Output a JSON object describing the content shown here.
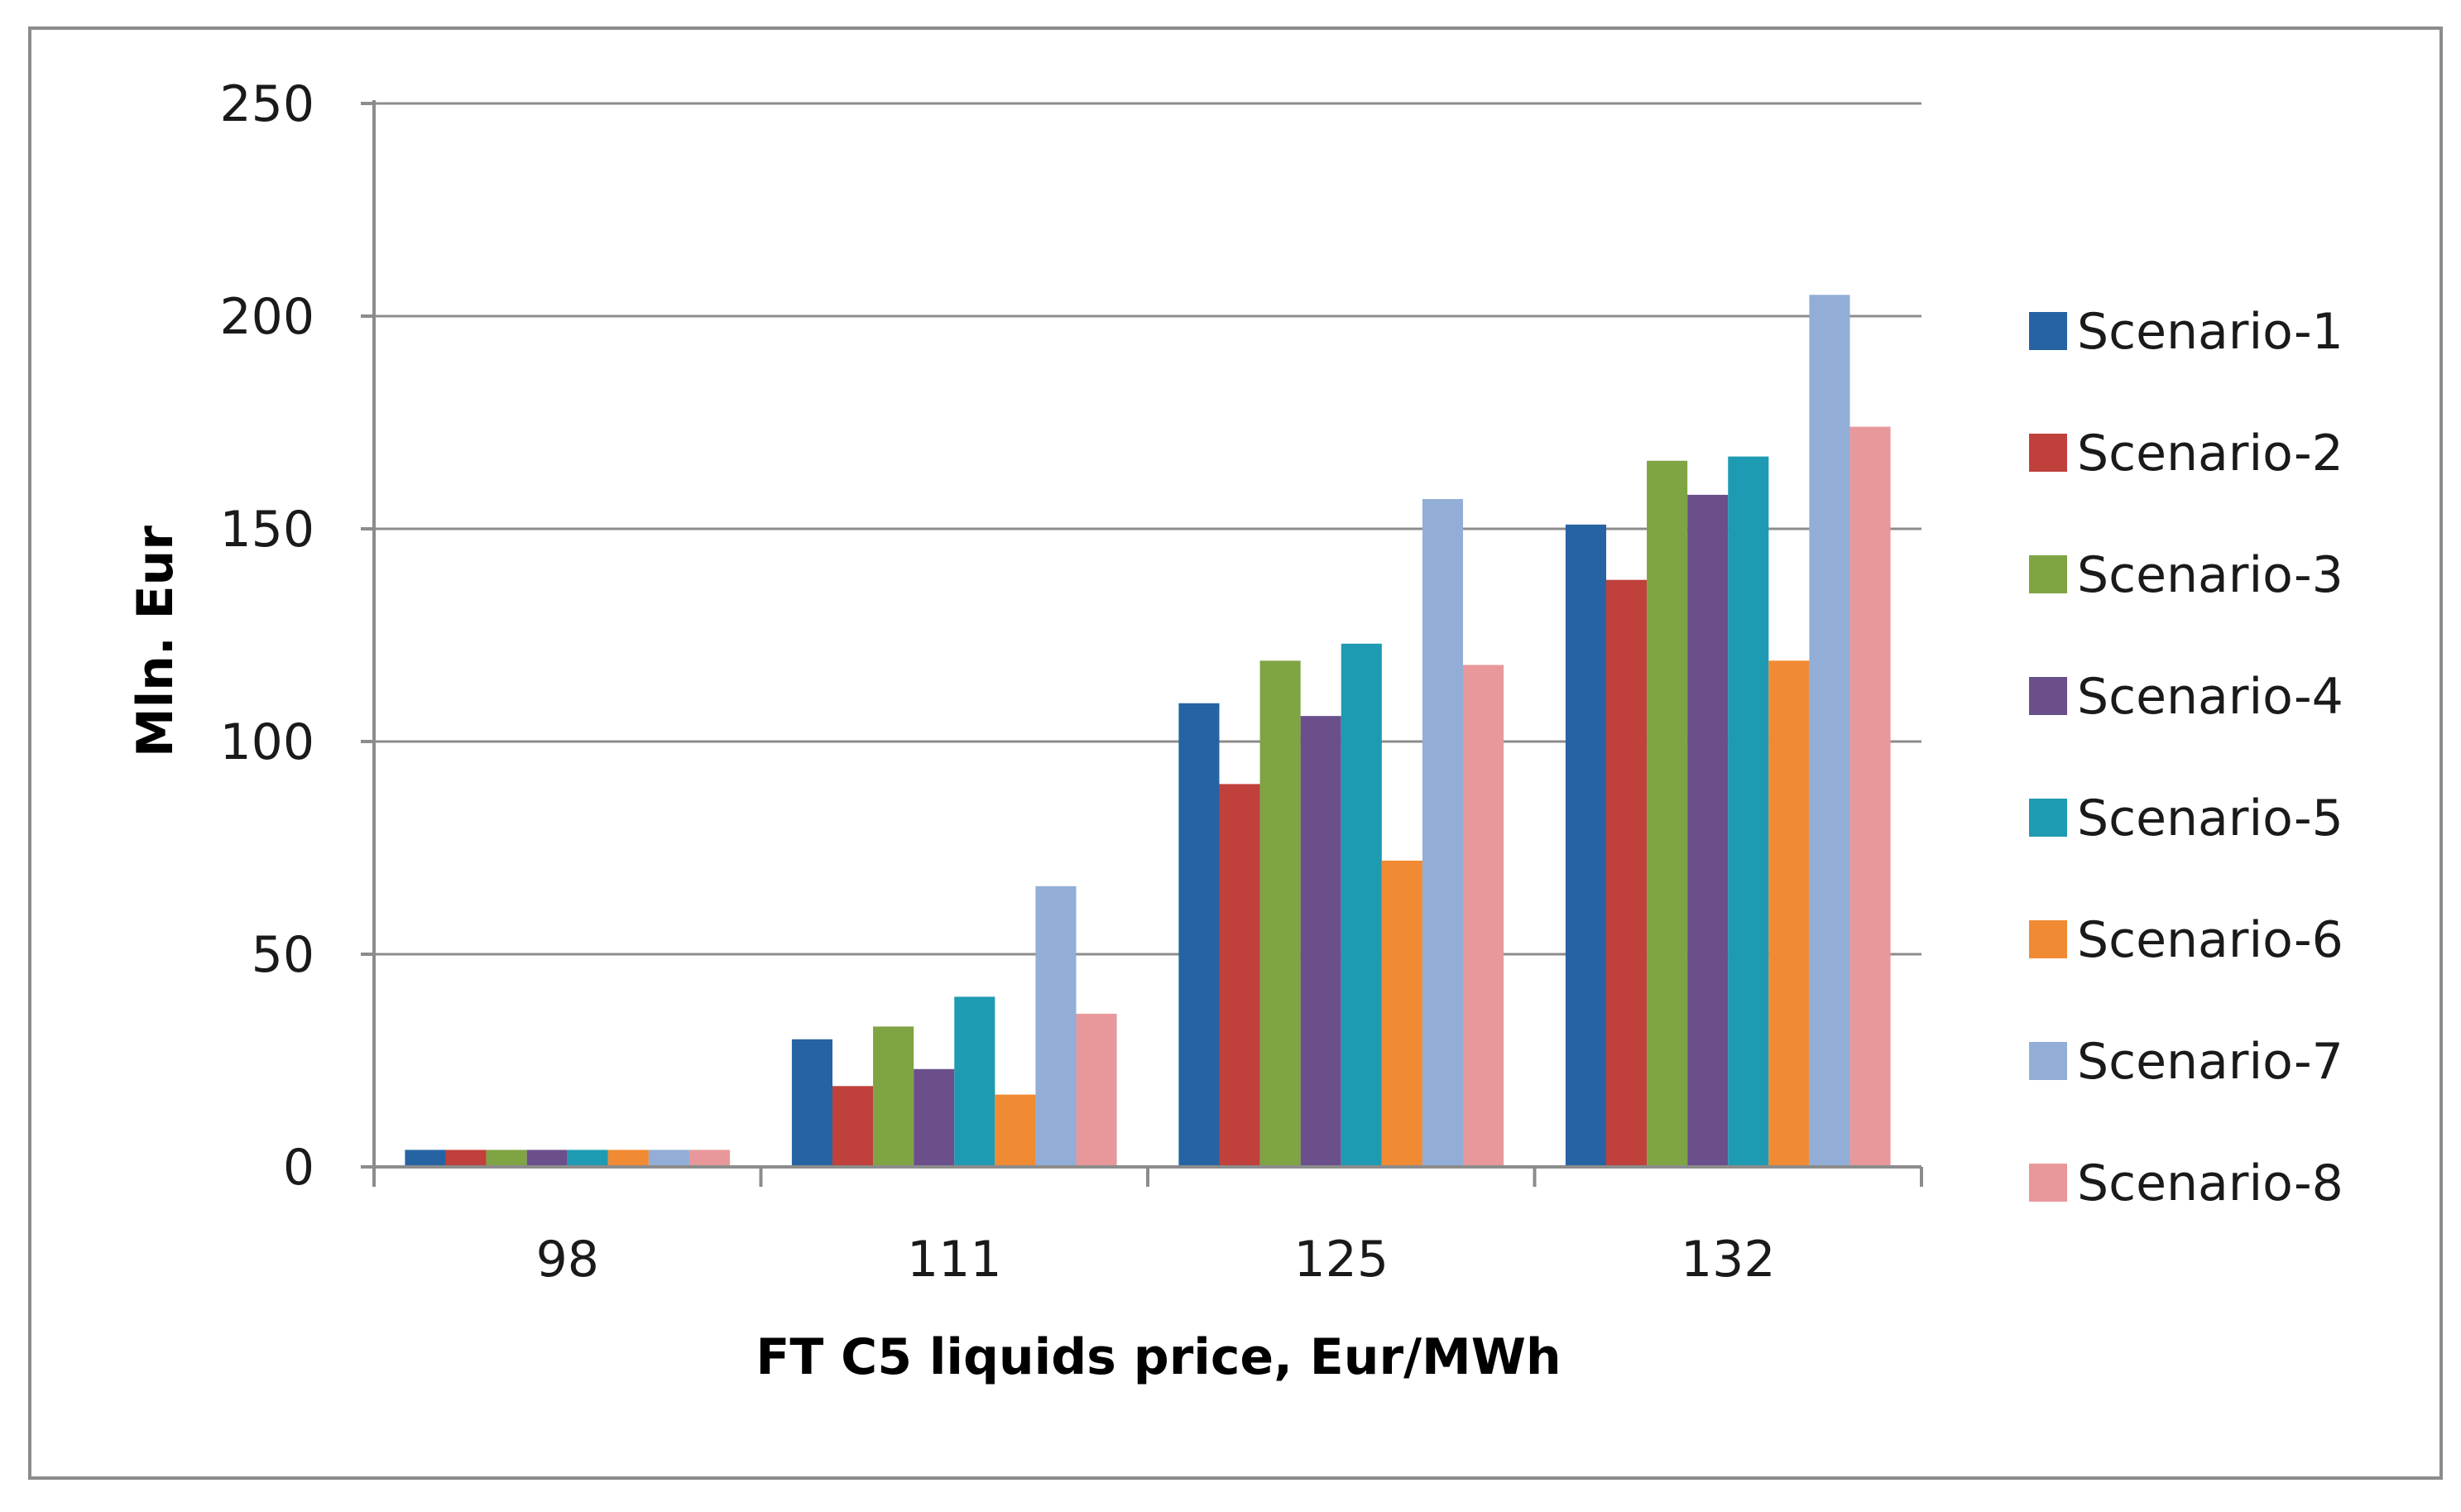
{
  "chart_data": {
    "type": "bar",
    "title": "",
    "xlabel": "FT C5 liquids price, Eur/MWh",
    "ylabel": "Mln. Eur",
    "categories": [
      "98",
      "111",
      "125",
      "132"
    ],
    "ylim": [
      0,
      250
    ],
    "yticks": [
      0,
      50,
      100,
      150,
      200,
      250
    ],
    "grid": true,
    "legend_position": "right",
    "series": [
      {
        "name": "Scenario-1",
        "color": "#2563a3",
        "values": [
          4,
          30,
          109,
          151
        ]
      },
      {
        "name": "Scenario-2",
        "color": "#c0403c",
        "values": [
          4,
          19,
          90,
          138
        ]
      },
      {
        "name": "Scenario-3",
        "color": "#7fa443",
        "values": [
          4,
          33,
          119,
          166
        ]
      },
      {
        "name": "Scenario-4",
        "color": "#6a4f8b",
        "values": [
          4,
          23,
          106,
          158
        ]
      },
      {
        "name": "Scenario-5",
        "color": "#1e9bb2",
        "values": [
          4,
          40,
          123,
          167
        ]
      },
      {
        "name": "Scenario-6",
        "color": "#f08a33",
        "values": [
          4,
          17,
          72,
          119
        ]
      },
      {
        "name": "Scenario-7",
        "color": "#92aed6",
        "values": [
          4,
          66,
          157,
          205
        ]
      },
      {
        "name": "Scenario-8",
        "color": "#e8989a",
        "values": [
          4,
          36,
          118,
          174
        ]
      }
    ]
  }
}
